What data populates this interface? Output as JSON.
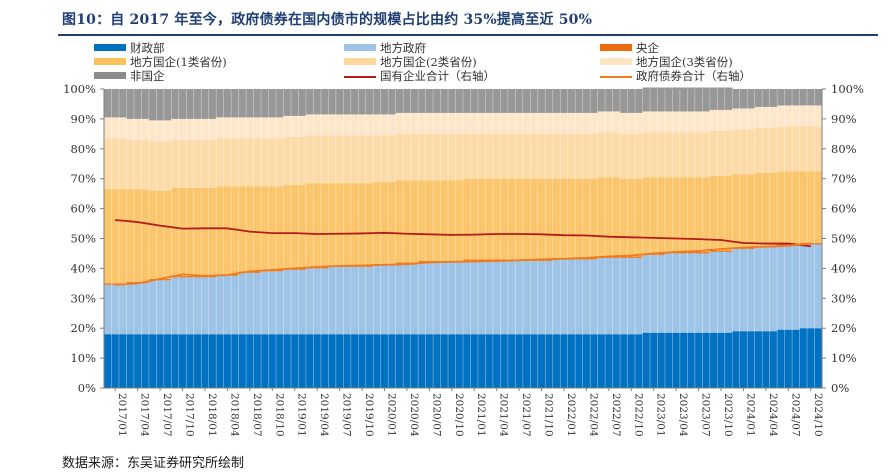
{
  "title": "图10：自 2017 年至今，政府债券在国内债市的规模占比由约 35%提高至近 50%",
  "source": "数据来源：东吴证券研究所绘制",
  "colors": {
    "title": "#1f3f73",
    "fiscal": "#0070c0",
    "local_gov": "#9dc3e6",
    "central_soe": "#ed6b0c",
    "local_soe_prov": "#fbbf5c",
    "local_soe_city": "#fdd7a0",
    "local_soe_county": "#fde4c4",
    "non_soe": "#8c8c8c",
    "soe_total_line": "#b21d1a",
    "gov_bond_line": "#f07a1e"
  },
  "chart_data": {
    "type": "area",
    "left_axis": {
      "ticks": [
        "0%",
        "10%",
        "20%",
        "30%",
        "40%",
        "50%",
        "60%",
        "70%",
        "80%",
        "90%",
        "100%"
      ],
      "ylim": [
        0,
        100
      ]
    },
    "right_axis": {
      "ticks": [
        "0%",
        "10%",
        "20%",
        "30%",
        "40%",
        "50%",
        "60%",
        "70%",
        "80%",
        "90%",
        "100%"
      ],
      "ylim": [
        0,
        100
      ]
    },
    "x_labels": [
      "2017/01",
      "2017/04",
      "2017/07",
      "2017/10",
      "2018/01",
      "2018/04",
      "2018/07",
      "2018/10",
      "2019/01",
      "2019/04",
      "2019/07",
      "2019/10",
      "2020/01",
      "2020/04",
      "2020/07",
      "2020/10",
      "2021/01",
      "2021/04",
      "2021/07",
      "2021/10",
      "2022/01",
      "2022/04",
      "2022/07",
      "2022/10",
      "2023/01",
      "2023/04",
      "2023/07",
      "2023/10",
      "2024/01",
      "2024/04",
      "2024/07",
      "2024/10"
    ],
    "legend": [
      {
        "key": "fiscal",
        "label": "财政部",
        "kind": "bar"
      },
      {
        "key": "local_gov",
        "label": "地方政府",
        "kind": "bar"
      },
      {
        "key": "central_soe",
        "label": "央企",
        "kind": "bar"
      },
      {
        "key": "local_soe_prov",
        "label": "地方国企(1类省份)",
        "kind": "bar"
      },
      {
        "key": "local_soe_city",
        "label": "地方国企(2类省份)",
        "kind": "bar"
      },
      {
        "key": "local_soe_county",
        "label": "地方国企(3类省份)",
        "kind": "bar"
      },
      {
        "key": "non_soe",
        "label": "非国企",
        "kind": "bar"
      },
      {
        "key": "soe_total_line",
        "label": "国有企业合计（右轴）",
        "kind": "line"
      },
      {
        "key": "gov_bond_line",
        "label": "政府债券合计（右轴）",
        "kind": "line"
      }
    ],
    "series": [
      {
        "name": "财政部",
        "values": [
          18,
          18,
          18,
          18,
          18,
          18,
          18,
          18,
          18,
          18,
          18,
          18,
          18,
          18,
          18,
          18,
          18,
          18,
          18,
          18,
          18,
          18,
          18,
          18,
          18.5,
          18.5,
          18.5,
          18.5,
          19,
          19,
          19.5,
          20
        ]
      },
      {
        "name": "地方政府",
        "values": [
          16.5,
          17,
          18,
          19,
          19,
          19.5,
          20.5,
          21,
          21.5,
          22,
          22.5,
          22.5,
          23,
          23.5,
          24,
          24,
          24.5,
          24.5,
          24.5,
          24.5,
          25,
          25,
          25.5,
          25.5,
          26,
          26.5,
          26.5,
          27,
          27.5,
          28,
          28,
          28
        ]
      },
      {
        "name": "央企",
        "values": [
          0.5,
          0.5,
          0.5,
          0.5,
          0.5,
          0.5,
          0.5,
          0.5,
          0.5,
          0.5,
          0.5,
          0.5,
          0.5,
          0.5,
          0.5,
          0.5,
          0.5,
          0.5,
          0.5,
          0.5,
          0.5,
          0.5,
          0.5,
          0.5,
          0.5,
          0.5,
          0.5,
          0.5,
          0.5,
          0.5,
          0.5,
          0.5
        ]
      },
      {
        "name": "地方国企(1类省份)",
        "values": [
          31.5,
          31,
          29.5,
          29.5,
          29.5,
          29.5,
          28.5,
          28,
          28,
          28,
          27.5,
          27.5,
          27.5,
          27.5,
          27,
          27,
          27,
          27,
          27,
          27,
          26.5,
          26.5,
          26.5,
          26,
          25.5,
          25,
          25,
          25,
          24.5,
          24.5,
          24.5,
          24
        ]
      },
      {
        "name": "地方国企(2类省份)",
        "values": [
          17,
          16.5,
          16.5,
          16,
          16,
          16,
          16,
          16,
          16,
          16,
          16,
          16,
          15.5,
          15.5,
          15.5,
          15.5,
          15,
          15,
          15,
          15,
          15,
          15,
          15,
          15,
          15,
          15,
          15,
          15,
          15,
          15,
          15,
          15
        ]
      },
      {
        "name": "地方国企(3类省份)",
        "values": [
          7,
          7,
          7,
          7,
          7,
          7,
          7,
          7,
          7,
          7,
          7,
          7,
          7,
          7,
          7,
          7,
          7,
          7,
          7,
          7,
          7,
          7,
          7,
          7,
          7,
          7,
          7,
          7,
          7,
          7,
          7,
          7
        ]
      },
      {
        "name": "非国企",
        "values": [
          9.5,
          10,
          10.5,
          10,
          10,
          9.5,
          9.5,
          9.5,
          9,
          8.5,
          8.5,
          8.5,
          8.5,
          8,
          8,
          8,
          8,
          8,
          8,
          8,
          8,
          8,
          7.5,
          8,
          8,
          8,
          8,
          7.5,
          6.5,
          6,
          5.5,
          5.5
        ]
      }
    ],
    "lines": [
      {
        "name": "国有企业合计（右轴）",
        "axis": "right",
        "values": [
          56.2,
          55.5,
          54.3,
          53.3,
          53.4,
          53.4,
          52.3,
          51.8,
          51.8,
          51.5,
          51.6,
          51.7,
          51.9,
          51.6,
          51.4,
          51.2,
          51.3,
          51.5,
          51.5,
          51.4,
          51.1,
          51,
          50.6,
          50.4,
          50.2,
          50,
          49.8,
          49.5,
          48.5,
          48.3,
          48.3,
          47.4
        ]
      },
      {
        "name": "政府债券合计（右轴）",
        "axis": "right",
        "values": [
          34.5,
          35,
          36.5,
          38,
          37.5,
          37.8,
          39,
          39.5,
          40,
          40.5,
          40.8,
          41,
          41.2,
          41.4,
          42,
          42.2,
          42.3,
          42.5,
          42.7,
          43,
          43.2,
          43.5,
          44,
          44.3,
          45,
          45.5,
          45.8,
          46.5,
          47,
          47.3,
          47.6,
          48.3
        ]
      }
    ]
  }
}
